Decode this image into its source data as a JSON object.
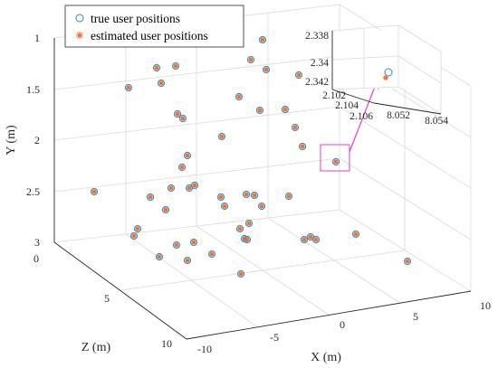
{
  "chart_data": {
    "type": "scatter3d",
    "xlabel": "X (m)",
    "ylabel": "Y (m)",
    "zlabel": "Z (m)",
    "x_ticks": [
      "-10",
      "-5",
      "0",
      "5",
      "10"
    ],
    "y_ticks": [
      "1",
      "1.5",
      "2",
      "2.5",
      "3"
    ],
    "z_ticks": [
      "0",
      "5",
      "10"
    ],
    "xlim": [
      -10,
      10
    ],
    "ylim": [
      1,
      3
    ],
    "zlim": [
      0,
      10
    ],
    "y_reversed": true,
    "grid": true,
    "legend": {
      "placement": "top-left",
      "entries": [
        "true user positions",
        "estimated user positions"
      ]
    },
    "series": [
      {
        "name": "true user positions",
        "marker": "circle",
        "color": "#1f8fd1",
        "points_view": [
          [
            290,
            44
          ],
          [
            277,
            66
          ],
          [
            173,
            75
          ],
          [
            194,
            73
          ],
          [
            294,
            77
          ],
          [
            330,
            83
          ],
          [
            142,
            97
          ],
          [
            178,
            92
          ],
          [
            264,
            107
          ],
          [
            287,
            122
          ],
          [
            196,
            126
          ],
          [
            202,
            131
          ],
          [
            315,
            121
          ],
          [
            326,
            141
          ],
          [
            245,
            151
          ],
          [
            334,
            162
          ],
          [
            371,
            179
          ],
          [
            207,
            172
          ],
          [
            201,
            185
          ],
          [
            104,
            212
          ],
          [
            166,
            218
          ],
          [
            189,
            208
          ],
          [
            209,
            208
          ],
          [
            215,
            205
          ],
          [
            244,
            218
          ],
          [
            272,
            215
          ],
          [
            281,
            216
          ],
          [
            319,
            217
          ],
          [
            289,
            228
          ],
          [
            183,
            232
          ],
          [
            248,
            228
          ],
          [
            152,
            253
          ],
          [
            148,
            261
          ],
          [
            265,
            253
          ],
          [
            275,
            247
          ],
          [
            343,
            262
          ],
          [
            336,
            265
          ],
          [
            349,
            265
          ],
          [
            195,
            271
          ],
          [
            214,
            268
          ],
          [
            270,
            264
          ],
          [
            273,
            265
          ],
          [
            393,
            259
          ],
          [
            176,
            284
          ],
          [
            234,
            281
          ],
          [
            207,
            288
          ],
          [
            450,
            289
          ],
          [
            266,
            303
          ]
        ]
      },
      {
        "name": "estimated user positions",
        "marker": "asterisk",
        "color": "#e8692e"
      }
    ],
    "inset": {
      "x_ticks": [
        "8.052",
        "8.054"
      ],
      "y_ticks": [
        "2.338",
        "2.34",
        "2.342"
      ],
      "z_ticks": [
        "2.102",
        "2.104",
        "2.106"
      ],
      "true_point": [
        429,
        80
      ],
      "est_point": [
        426,
        86
      ]
    }
  }
}
